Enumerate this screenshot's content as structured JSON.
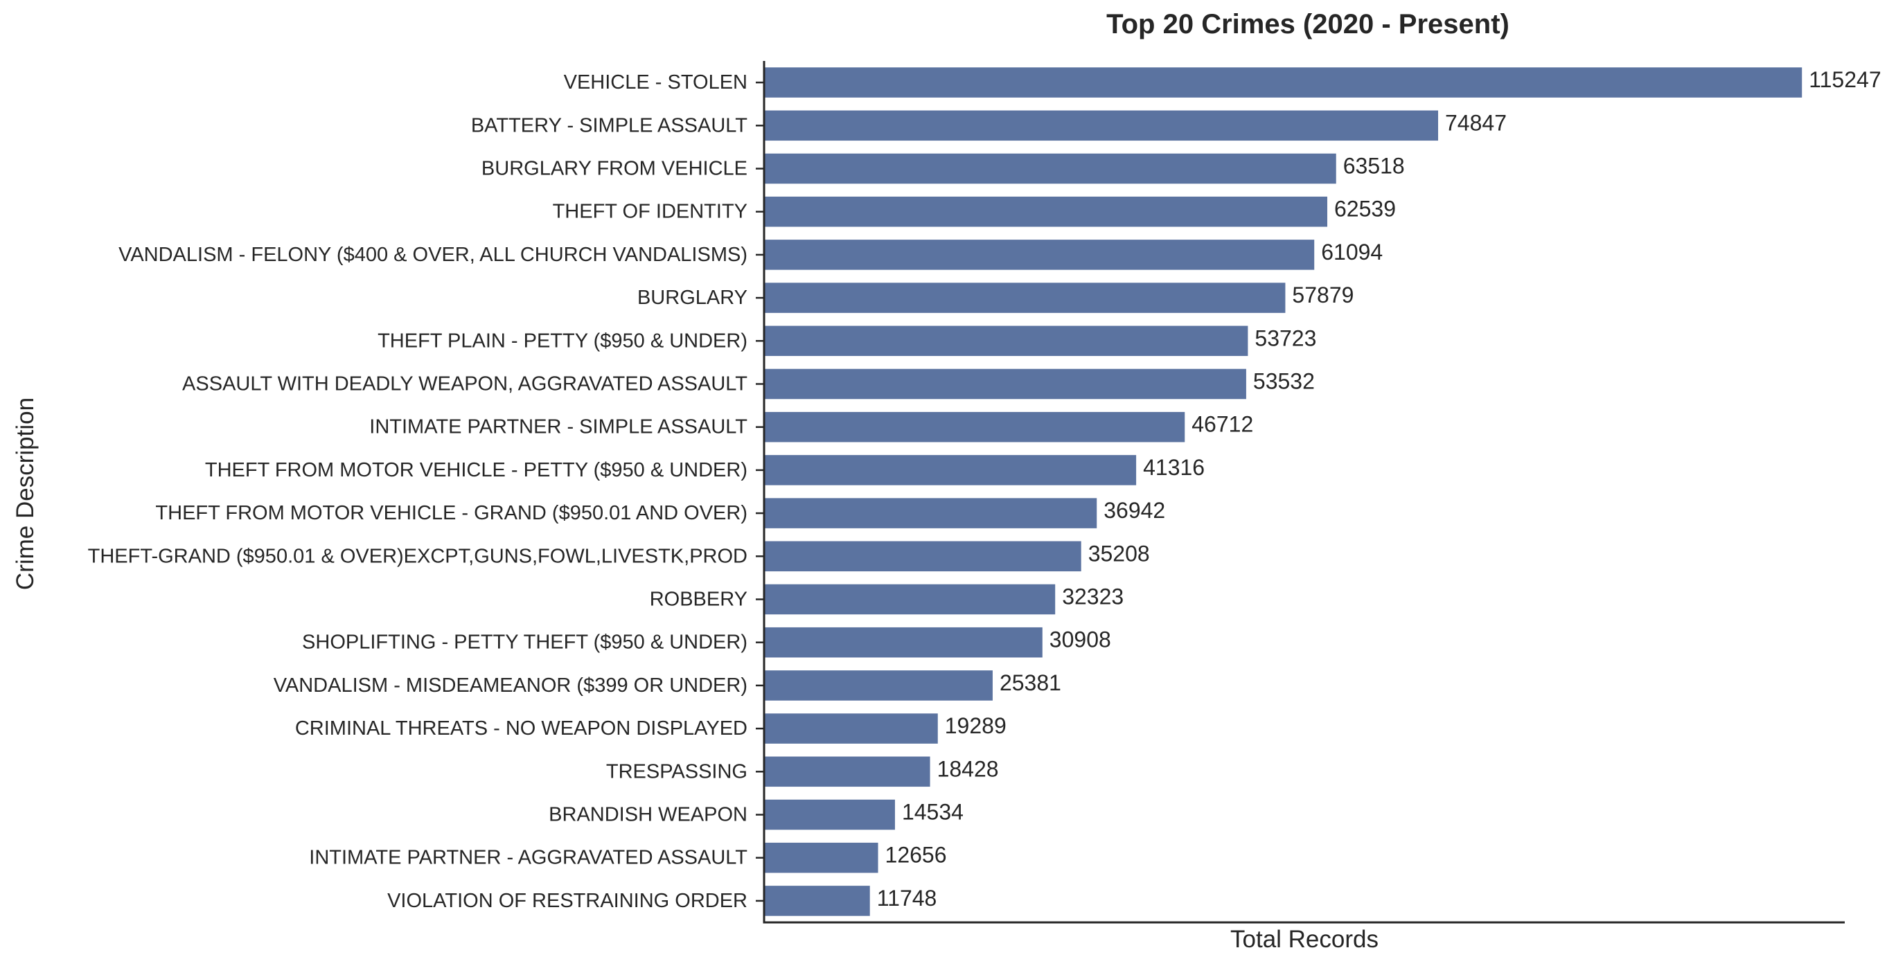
{
  "chart_data": {
    "type": "bar",
    "orientation": "horizontal",
    "title": "Top 20 Crimes (2020 - Present)",
    "xlabel": "Total Records",
    "ylabel": "Crime Description",
    "bar_color": "#5b73a0",
    "xlim": [
      0,
      120000
    ],
    "grid": false,
    "legend": "none",
    "categories": [
      "VEHICLE - STOLEN",
      "BATTERY - SIMPLE ASSAULT",
      "BURGLARY FROM VEHICLE",
      "THEFT OF IDENTITY",
      "VANDALISM - FELONY ($400 & OVER, ALL CHURCH VANDALISMS)",
      "BURGLARY",
      "THEFT PLAIN - PETTY ($950 & UNDER)",
      "ASSAULT WITH DEADLY WEAPON, AGGRAVATED ASSAULT",
      "INTIMATE PARTNER - SIMPLE ASSAULT",
      "THEFT FROM MOTOR VEHICLE - PETTY ($950 & UNDER)",
      "THEFT FROM MOTOR VEHICLE - GRAND ($950.01 AND OVER)",
      "THEFT-GRAND ($950.01 & OVER)EXCPT,GUNS,FOWL,LIVESTK,PROD",
      "ROBBERY",
      "SHOPLIFTING - PETTY THEFT ($950 & UNDER)",
      "VANDALISM - MISDEAMEANOR ($399 OR UNDER)",
      "CRIMINAL THREATS - NO WEAPON DISPLAYED",
      "TRESPASSING",
      "BRANDISH WEAPON",
      "INTIMATE PARTNER - AGGRAVATED ASSAULT",
      "VIOLATION OF RESTRAINING ORDER"
    ],
    "values": [
      115247,
      74847,
      63518,
      62539,
      61094,
      57879,
      53723,
      53532,
      46712,
      41316,
      36942,
      35208,
      32323,
      30908,
      25381,
      19289,
      18428,
      14534,
      12656,
      11748
    ]
  }
}
